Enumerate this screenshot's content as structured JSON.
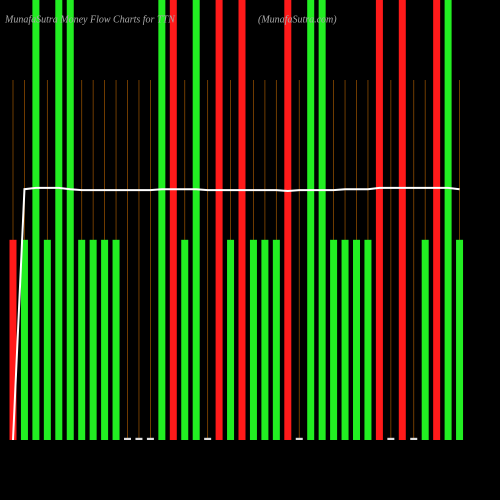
{
  "chart_data": {
    "type": "bar",
    "title": "MunafaSutra Money Flow Charts for TTN",
    "subtitle": "(MunafaSutra.com)",
    "values": [
      45.5,
      45.5,
      100,
      45.5,
      100,
      100,
      45.5,
      45.5,
      45.5,
      45.5,
      0.5,
      0.5,
      0.5,
      100,
      100,
      45.5,
      100,
      0.5,
      100,
      45.5,
      100,
      45.5,
      45.5,
      45.5,
      100,
      0.5,
      100,
      100,
      45.5,
      45.5,
      45.5,
      45.5,
      100,
      0.5,
      100,
      0.5,
      45.5,
      100,
      100,
      45.5
    ],
    "colors": [
      "#ff1a1a",
      "#22ee22",
      "#22ee22",
      "#22ee22",
      "#22ee22",
      "#22ee22",
      "#22ee22",
      "#22ee22",
      "#22ee22",
      "#22ee22",
      "#dddddd",
      "#dddddd",
      "#dddddd",
      "#22ee22",
      "#ff1a1a",
      "#22ee22",
      "#22ee22",
      "#dddddd",
      "#ff1a1a",
      "#22ee22",
      "#ff1a1a",
      "#22ee22",
      "#22ee22",
      "#22ee22",
      "#ff1a1a",
      "#dddddd",
      "#22ee22",
      "#22ee22",
      "#22ee22",
      "#22ee22",
      "#22ee22",
      "#22ee22",
      "#ff1a1a",
      "#dddddd",
      "#ff1a1a",
      "#dddddd",
      "#22ee22",
      "#ff1a1a",
      "#22ee22",
      "#22ee22"
    ],
    "line": {
      "color": "#ffffff",
      "values": [
        0,
        57.0,
        57.3,
        57.3,
        57.3,
        57.0,
        56.8,
        56.8,
        56.8,
        56.8,
        56.8,
        56.8,
        56.8,
        57.0,
        57.0,
        57.0,
        57.0,
        56.8,
        56.8,
        56.8,
        56.8,
        56.8,
        56.8,
        56.8,
        56.6,
        56.8,
        56.8,
        56.8,
        56.8,
        57.0,
        57.0,
        57.0,
        57.3,
        57.3,
        57.3,
        57.3,
        57.3,
        57.3,
        57.3,
        57.0
      ]
    },
    "ylim": [
      0,
      100
    ]
  }
}
